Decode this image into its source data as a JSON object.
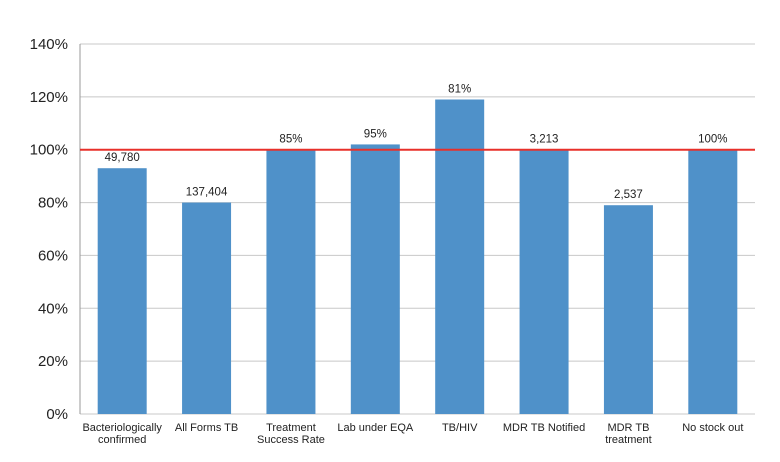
{
  "chart_data": {
    "type": "bar",
    "categories": [
      [
        "Bacteriologically",
        "confirmed"
      ],
      [
        "All Forms TB"
      ],
      [
        "Treatment",
        "Success Rate"
      ],
      [
        "Lab under EQA"
      ],
      [
        "TB/HIV"
      ],
      [
        "MDR TB Notified"
      ],
      [
        "MDR TB",
        "treatment"
      ],
      [
        "No stock out"
      ]
    ],
    "values": [
      93,
      80,
      100,
      102,
      119,
      100,
      79,
      100
    ],
    "data_labels": [
      "49,780",
      "137,404",
      "85%",
      "95%",
      "81%",
      "3,213",
      "2,537",
      "100%"
    ],
    "ylim": [
      0,
      140
    ],
    "yticks": [
      0,
      20,
      40,
      60,
      80,
      100,
      120,
      140
    ],
    "ytick_labels": [
      "0%",
      "20%",
      "40%",
      "60%",
      "80%",
      "100%",
      "120%",
      "140%"
    ],
    "reference_line": {
      "value": 100,
      "color": "#e8302a"
    },
    "bar_color": "#4f91c9",
    "gridlines": true,
    "legend": "none"
  }
}
